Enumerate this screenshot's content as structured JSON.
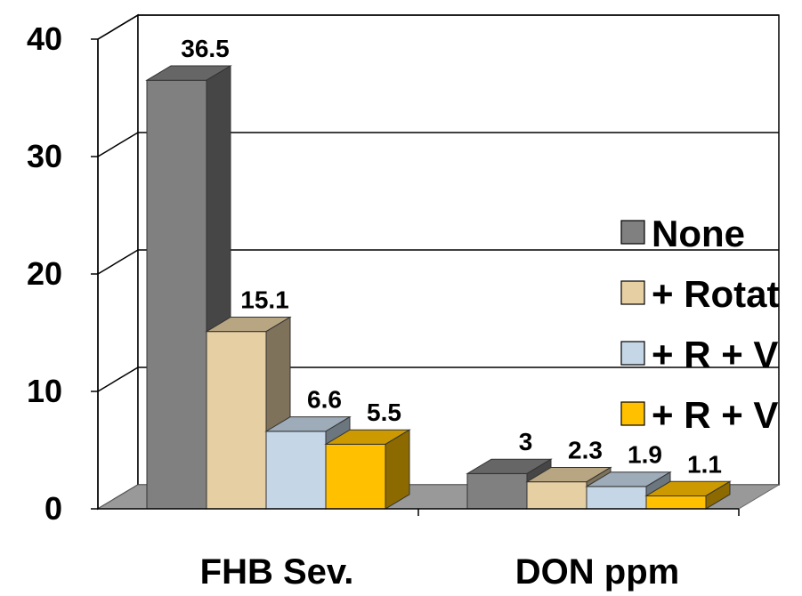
{
  "chart_data": {
    "type": "bar",
    "title": "",
    "xlabel": "",
    "ylabel": "",
    "ylim": [
      0,
      40
    ],
    "yticks": [
      "0",
      "10",
      "20",
      "30",
      "40"
    ],
    "grid": true,
    "legend_position": "right",
    "categories": [
      "FHB Sev.",
      "DON ppm"
    ],
    "series": [
      {
        "name": "None",
        "values": [
          36.5,
          3
        ],
        "labels": [
          "36.5",
          "3"
        ],
        "color": "#808080"
      },
      {
        "name": "+ Rotat",
        "values": [
          15.1,
          2.3
        ],
        "labels": [
          "15.1",
          "2.3"
        ],
        "color": "#e6cfa3"
      },
      {
        "name": "+ R + V",
        "values": [
          6.6,
          1.9
        ],
        "labels": [
          "6.6",
          "1.9"
        ],
        "color": "#c5d6e6"
      },
      {
        "name": "+ R + V",
        "values": [
          5.5,
          1.1
        ],
        "labels": [
          "5.5",
          "1.1"
        ],
        "color": "#ffc000"
      }
    ]
  }
}
